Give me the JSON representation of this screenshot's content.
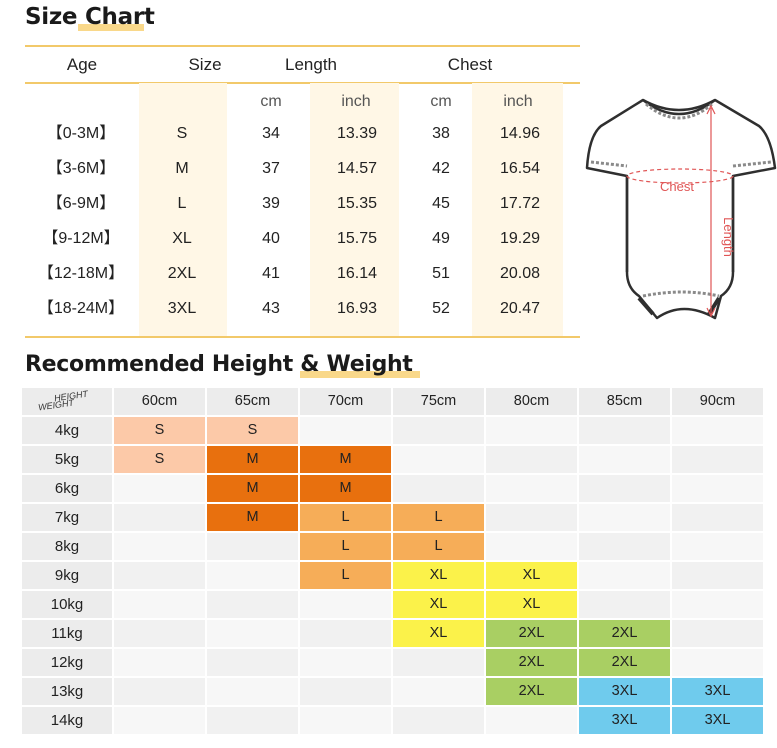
{
  "size_chart": {
    "title": "Size Chart",
    "headers": {
      "age": "Age",
      "size": "Size",
      "length": "Length",
      "chest": "Chest"
    },
    "units": [
      "cm",
      "inch",
      "cm",
      "inch"
    ],
    "rows": [
      {
        "age": "【0-3M】",
        "size": "S",
        "length_cm": "34",
        "length_inch": "13.39",
        "chest_cm": "38",
        "chest_inch": "14.96"
      },
      {
        "age": "【3-6M】",
        "size": "M",
        "length_cm": "37",
        "length_inch": "14.57",
        "chest_cm": "42",
        "chest_inch": "16.54"
      },
      {
        "age": "【6-9M】",
        "size": "L",
        "length_cm": "39",
        "length_inch": "15.35",
        "chest_cm": "45",
        "chest_inch": "17.72"
      },
      {
        "age": "【9-12M】",
        "size": "XL",
        "length_cm": "40",
        "length_inch": "15.75",
        "chest_cm": "49",
        "chest_inch": "19.29"
      },
      {
        "age": "【12-18M】",
        "size": "2XL",
        "length_cm": "41",
        "length_inch": "16.14",
        "chest_cm": "51",
        "chest_inch": "20.08"
      },
      {
        "age": "【18-24M】",
        "size": "3XL",
        "length_cm": "43",
        "length_inch": "16.93",
        "chest_cm": "52",
        "chest_inch": "20.47"
      }
    ]
  },
  "diagram": {
    "chest_label": "Chest",
    "length_label": "Length",
    "accent": "#e05555"
  },
  "height_weight": {
    "title": "Recommended Height & Weight",
    "corner_height": "HEIGHT",
    "corner_weight": "WEIGHT",
    "heights": [
      "60cm",
      "65cm",
      "70cm",
      "75cm",
      "80cm",
      "85cm",
      "90cm"
    ],
    "weights": [
      "4kg",
      "5kg",
      "6kg",
      "7kg",
      "8kg",
      "9kg",
      "10kg",
      "11kg",
      "12kg",
      "13kg",
      "14kg"
    ],
    "grid": [
      [
        "S",
        "S",
        "",
        "",
        "",
        "",
        ""
      ],
      [
        "S",
        "M",
        "M",
        "",
        "",
        "",
        ""
      ],
      [
        "",
        "M",
        "M",
        "",
        "",
        "",
        ""
      ],
      [
        "",
        "M",
        "L",
        "L",
        "",
        "",
        ""
      ],
      [
        "",
        "",
        "L",
        "L",
        "",
        "",
        ""
      ],
      [
        "",
        "",
        "L",
        "XL",
        "XL",
        "",
        ""
      ],
      [
        "",
        "",
        "",
        "XL",
        "XL",
        "",
        ""
      ],
      [
        "",
        "",
        "",
        "XL",
        "2XL",
        "2XL",
        ""
      ],
      [
        "",
        "",
        "",
        "",
        "2XL",
        "2XL",
        ""
      ],
      [
        "",
        "",
        "",
        "",
        "2XL",
        "3XL",
        "3XL"
      ],
      [
        "",
        "",
        "",
        "",
        "",
        "3XL",
        "3XL"
      ]
    ],
    "colors": {
      "S": "#fcc9a8",
      "M": "#e8700e",
      "L": "#f6ad58",
      "XL": "#fbf24a",
      "2XL": "#a9cf63",
      "3XL": "#6fcbed",
      "empty_a": "#f7f7f7",
      "empty_b": "#f1f1f1",
      "header": "#ececec"
    }
  }
}
